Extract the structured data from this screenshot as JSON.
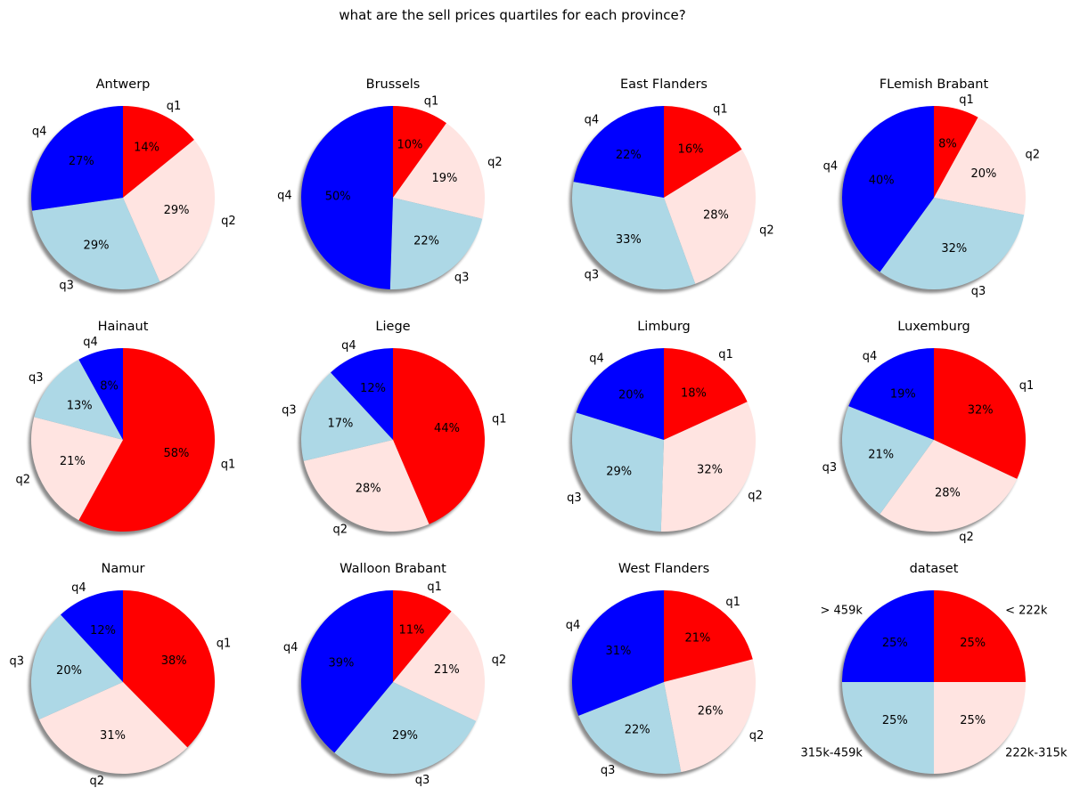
{
  "figure": {
    "suptitle": "what are the sell prices quartiles for each province?"
  },
  "chart_data": [
    {
      "type": "pie",
      "title": "Antwerp",
      "labels": [
        "q1",
        "q2",
        "q3",
        "q4"
      ],
      "values": [
        14,
        29,
        29,
        27
      ],
      "pct_labels": [
        "14%",
        "29%",
        "29%",
        "27%"
      ],
      "colors": [
        "#ff0000",
        "#ffe4e1",
        "#add8e6",
        "#0000ff"
      ]
    },
    {
      "type": "pie",
      "title": "Brussels",
      "labels": [
        "q1",
        "q2",
        "q3",
        "q4"
      ],
      "values": [
        10,
        19,
        22,
        50
      ],
      "pct_labels": [
        "10%",
        "19%",
        "22%",
        "50%"
      ],
      "colors": [
        "#ff0000",
        "#ffe4e1",
        "#add8e6",
        "#0000ff"
      ]
    },
    {
      "type": "pie",
      "title": "East Flanders",
      "labels": [
        "q1",
        "q2",
        "q3",
        "q4"
      ],
      "values": [
        16,
        28,
        33,
        22
      ],
      "pct_labels": [
        "16%",
        "28%",
        "33%",
        "22%"
      ],
      "colors": [
        "#ff0000",
        "#ffe4e1",
        "#add8e6",
        "#0000ff"
      ]
    },
    {
      "type": "pie",
      "title": "FLemish Brabant",
      "labels": [
        "q1",
        "q2",
        "q3",
        "q4"
      ],
      "values": [
        8,
        20,
        32,
        40
      ],
      "pct_labels": [
        "8%",
        "20%",
        "32%",
        "40%"
      ],
      "colors": [
        "#ff0000",
        "#ffe4e1",
        "#add8e6",
        "#0000ff"
      ]
    },
    {
      "type": "pie",
      "title": "Hainaut",
      "labels": [
        "q1",
        "q2",
        "q3",
        "q4"
      ],
      "values": [
        58,
        21,
        13,
        8
      ],
      "pct_labels": [
        "58%",
        "21%",
        "13%",
        "8%"
      ],
      "colors": [
        "#ff0000",
        "#ffe4e1",
        "#add8e6",
        "#0000ff"
      ]
    },
    {
      "type": "pie",
      "title": "Liege",
      "labels": [
        "q1",
        "q2",
        "q3",
        "q4"
      ],
      "values": [
        44,
        28,
        17,
        12
      ],
      "pct_labels": [
        "44%",
        "28%",
        "17%",
        "12%"
      ],
      "colors": [
        "#ff0000",
        "#ffe4e1",
        "#add8e6",
        "#0000ff"
      ]
    },
    {
      "type": "pie",
      "title": "Limburg",
      "labels": [
        "q1",
        "q2",
        "q3",
        "q4"
      ],
      "values": [
        18,
        32,
        29,
        20
      ],
      "pct_labels": [
        "18%",
        "32%",
        "29%",
        "20%"
      ],
      "colors": [
        "#ff0000",
        "#ffe4e1",
        "#add8e6",
        "#0000ff"
      ]
    },
    {
      "type": "pie",
      "title": "Luxemburg",
      "labels": [
        "q1",
        "q2",
        "q3",
        "q4"
      ],
      "values": [
        32,
        28,
        21,
        19
      ],
      "pct_labels": [
        "32%",
        "28%",
        "21%",
        "19%"
      ],
      "colors": [
        "#ff0000",
        "#ffe4e1",
        "#add8e6",
        "#0000ff"
      ]
    },
    {
      "type": "pie",
      "title": "Namur",
      "labels": [
        "q1",
        "q2",
        "q3",
        "q4"
      ],
      "values": [
        38,
        31,
        20,
        12
      ],
      "pct_labels": [
        "38%",
        "31%",
        "20%",
        "12%"
      ],
      "colors": [
        "#ff0000",
        "#ffe4e1",
        "#add8e6",
        "#0000ff"
      ]
    },
    {
      "type": "pie",
      "title": "Walloon Brabant",
      "labels": [
        "q1",
        "q2",
        "q3",
        "q4"
      ],
      "values": [
        11,
        21,
        29,
        39
      ],
      "pct_labels": [
        "11%",
        "21%",
        "29%",
        "39%"
      ],
      "colors": [
        "#ff0000",
        "#ffe4e1",
        "#add8e6",
        "#0000ff"
      ]
    },
    {
      "type": "pie",
      "title": "West Flanders",
      "labels": [
        "q1",
        "q2",
        "q3",
        "q4"
      ],
      "values": [
        21,
        26,
        22,
        31
      ],
      "pct_labels": [
        "21%",
        "26%",
        "22%",
        "31%"
      ],
      "colors": [
        "#ff0000",
        "#ffe4e1",
        "#add8e6",
        "#0000ff"
      ]
    },
    {
      "type": "pie",
      "title": "dataset",
      "labels": [
        "< 222k",
        "222k-315k",
        "315k-459k",
        "> 459k"
      ],
      "values": [
        25,
        25,
        25,
        25
      ],
      "pct_labels": [
        "25%",
        "25%",
        "25%",
        "25%"
      ],
      "colors": [
        "#ff0000",
        "#ffe4e1",
        "#add8e6",
        "#0000ff"
      ]
    }
  ]
}
